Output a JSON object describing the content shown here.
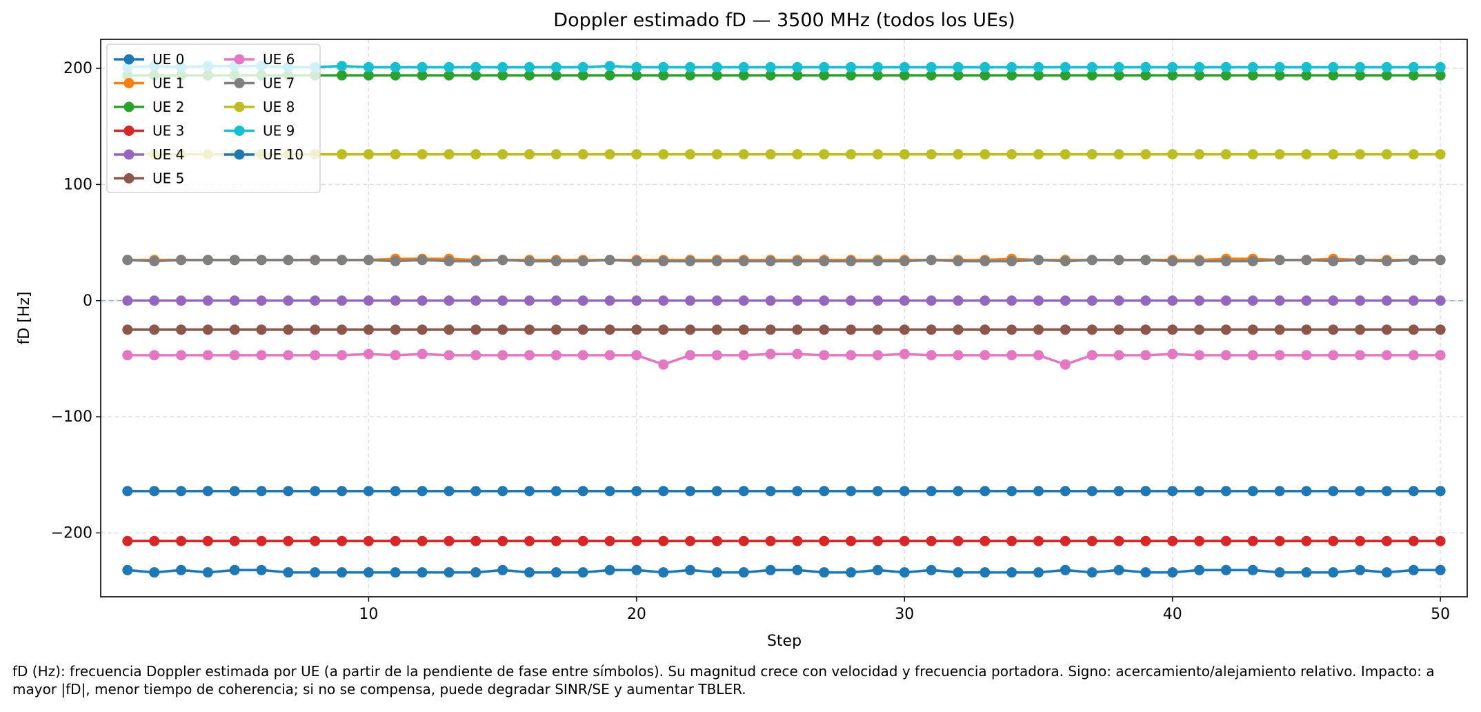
{
  "chart_data": {
    "type": "line",
    "title": "Doppler estimado fD — 3500 MHz (todos los UEs)",
    "xlabel": "Step",
    "ylabel": "fD [Hz]",
    "xlim": [
      0,
      51
    ],
    "ylim": [
      -255,
      225
    ],
    "xticks": [
      10,
      20,
      30,
      40,
      50
    ],
    "yticks": [
      200,
      100,
      0,
      -100,
      -200
    ],
    "ytick_labels": [
      "200",
      "100",
      "0",
      "−100",
      "−200"
    ],
    "grid": true,
    "zero_line": true,
    "legend_position": "top-left",
    "legend_columns": 2,
    "x": [
      1,
      2,
      3,
      4,
      5,
      6,
      7,
      8,
      9,
      10,
      11,
      12,
      13,
      14,
      15,
      16,
      17,
      18,
      19,
      20,
      21,
      22,
      23,
      24,
      25,
      26,
      27,
      28,
      29,
      30,
      31,
      32,
      33,
      34,
      35,
      36,
      37,
      38,
      39,
      40,
      41,
      42,
      43,
      44,
      45,
      46,
      47,
      48,
      49,
      50
    ],
    "series": [
      {
        "name": "UE 0",
        "color": "#1f77b4",
        "values": [
          -232,
          -234,
          -232,
          -234,
          -232,
          -232,
          -234,
          -234,
          -234,
          -234,
          -234,
          -234,
          -234,
          -234,
          -232,
          -234,
          -234,
          -234,
          -232,
          -232,
          -234,
          -232,
          -234,
          -234,
          -232,
          -232,
          -234,
          -234,
          -232,
          -234,
          -232,
          -234,
          -234,
          -234,
          -234,
          -232,
          -234,
          -232,
          -234,
          -234,
          -232,
          -232,
          -232,
          -234,
          -234,
          -234,
          -232,
          -234,
          -232,
          -232
        ]
      },
      {
        "name": "UE 1",
        "color": "#ff7f0e",
        "values": [
          35,
          35,
          35,
          35,
          35,
          35,
          35,
          35,
          35,
          35,
          36,
          36,
          36,
          35,
          35,
          35,
          35,
          35,
          35,
          35,
          35,
          35,
          35,
          35,
          35,
          35,
          35,
          35,
          35,
          35,
          35,
          35,
          35,
          36,
          35,
          35,
          35,
          35,
          35,
          35,
          35,
          36,
          36,
          35,
          35,
          36,
          35,
          35,
          35,
          35
        ]
      },
      {
        "name": "UE 2",
        "color": "#2ca02c",
        "values": [
          194,
          194,
          194,
          194,
          194,
          194,
          194,
          194,
          194,
          194,
          194,
          194,
          194,
          194,
          194,
          194,
          194,
          194,
          194,
          194,
          194,
          194,
          194,
          194,
          194,
          194,
          194,
          194,
          194,
          194,
          194,
          194,
          194,
          194,
          194,
          194,
          194,
          194,
          194,
          194,
          194,
          194,
          194,
          194,
          194,
          194,
          194,
          194,
          194,
          194
        ]
      },
      {
        "name": "UE 3",
        "color": "#d62728",
        "values": [
          -207,
          -207,
          -207,
          -207,
          -207,
          -207,
          -207,
          -207,
          -207,
          -207,
          -207,
          -207,
          -207,
          -207,
          -207,
          -207,
          -207,
          -207,
          -207,
          -207,
          -207,
          -207,
          -207,
          -207,
          -207,
          -207,
          -207,
          -207,
          -207,
          -207,
          -207,
          -207,
          -207,
          -207,
          -207,
          -207,
          -207,
          -207,
          -207,
          -207,
          -207,
          -207,
          -207,
          -207,
          -207,
          -207,
          -207,
          -207,
          -207,
          -207
        ]
      },
      {
        "name": "UE 4",
        "color": "#9467bd",
        "values": [
          0,
          0,
          0,
          0,
          0,
          0,
          0,
          0,
          0,
          0,
          0,
          0,
          0,
          0,
          0,
          0,
          0,
          0,
          0,
          0,
          0,
          0,
          0,
          0,
          0,
          0,
          0,
          0,
          0,
          0,
          0,
          0,
          0,
          0,
          0,
          0,
          0,
          0,
          0,
          0,
          0,
          0,
          0,
          0,
          0,
          0,
          0,
          0,
          0,
          0
        ]
      },
      {
        "name": "UE 5",
        "color": "#8c564b",
        "values": [
          -25,
          -25,
          -25,
          -25,
          -25,
          -25,
          -25,
          -25,
          -25,
          -25,
          -25,
          -25,
          -25,
          -25,
          -25,
          -25,
          -25,
          -25,
          -25,
          -25,
          -25,
          -25,
          -25,
          -25,
          -25,
          -25,
          -25,
          -25,
          -25,
          -25,
          -25,
          -25,
          -25,
          -25,
          -25,
          -25,
          -25,
          -25,
          -25,
          -25,
          -25,
          -25,
          -25,
          -25,
          -25,
          -25,
          -25,
          -25,
          -25,
          -25
        ]
      },
      {
        "name": "UE 6",
        "color": "#e377c2",
        "values": [
          -47,
          -47,
          -47,
          -47,
          -47,
          -47,
          -47,
          -47,
          -47,
          -46,
          -47,
          -46,
          -47,
          -47,
          -47,
          -47,
          -47,
          -47,
          -47,
          -47,
          -55,
          -47,
          -47,
          -47,
          -46,
          -46,
          -47,
          -47,
          -47,
          -46,
          -47,
          -47,
          -47,
          -47,
          -47,
          -55,
          -47,
          -47,
          -47,
          -46,
          -47,
          -47,
          -47,
          -47,
          -47,
          -47,
          -47,
          -47,
          -47,
          -47
        ]
      },
      {
        "name": "UE 7",
        "color": "#7f7f7f",
        "values": [
          35,
          34,
          35,
          35,
          35,
          35,
          35,
          35,
          35,
          35,
          34,
          35,
          34,
          34,
          35,
          34,
          34,
          34,
          35,
          34,
          34,
          34,
          34,
          34,
          34,
          34,
          34,
          34,
          34,
          34,
          35,
          34,
          34,
          34,
          35,
          34,
          35,
          35,
          35,
          34,
          34,
          34,
          34,
          35,
          35,
          34,
          35,
          34,
          35,
          35
        ]
      },
      {
        "name": "UE 8",
        "color": "#bcbd22",
        "values": [
          126,
          126,
          126,
          126,
          126,
          126,
          126,
          126,
          126,
          126,
          126,
          126,
          126,
          126,
          126,
          126,
          126,
          126,
          126,
          126,
          126,
          126,
          126,
          126,
          126,
          126,
          126,
          126,
          126,
          126,
          126,
          126,
          126,
          126,
          126,
          126,
          126,
          126,
          126,
          126,
          126,
          126,
          126,
          126,
          126,
          126,
          126,
          126,
          126,
          126
        ]
      },
      {
        "name": "UE 9",
        "color": "#17becf",
        "values": [
          201,
          202,
          201,
          202,
          202,
          202,
          201,
          201,
          202,
          201,
          201,
          201,
          201,
          201,
          201,
          201,
          201,
          201,
          202,
          201,
          201,
          201,
          201,
          201,
          201,
          201,
          201,
          201,
          201,
          201,
          201,
          201,
          201,
          201,
          201,
          201,
          201,
          201,
          201,
          201,
          201,
          201,
          201,
          201,
          201,
          201,
          201,
          201,
          201,
          201
        ]
      },
      {
        "name": "UE 10",
        "color": "#1f77b4",
        "values": [
          -164,
          -164,
          -164,
          -164,
          -164,
          -164,
          -164,
          -164,
          -164,
          -164,
          -164,
          -164,
          -164,
          -164,
          -164,
          -164,
          -164,
          -164,
          -164,
          -164,
          -164,
          -164,
          -164,
          -164,
          -164,
          -164,
          -164,
          -164,
          -164,
          -164,
          -164,
          -164,
          -164,
          -164,
          -164,
          -164,
          -164,
          -164,
          -164,
          -164,
          -164,
          -164,
          -164,
          -164,
          -164,
          -164,
          -164,
          -164,
          -164,
          -164
        ]
      }
    ]
  },
  "caption": "fD (Hz): frecuencia Doppler estimada por UE (a partir de la pendiente de fase entre símbolos). Su magnitud crece con velocidad y frecuencia portadora. Signo: acercamiento/alejamiento relativo. Impacto: a mayor |fD|, menor tiempo de coherencia; si no se compensa, puede degradar SINR/SE y aumentar TBLER.",
  "colors": {
    "zero_line": "#8fb3d9",
    "grid": "#dddddd",
    "axes": "#000000"
  }
}
